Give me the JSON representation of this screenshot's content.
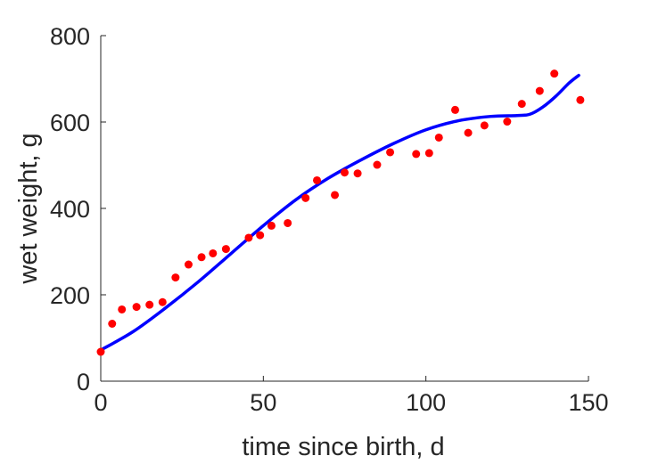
{
  "chart_data": {
    "type": "scatter",
    "title": "",
    "xlabel": "time since birth, d",
    "ylabel": "wet weight, g",
    "xlim": [
      0,
      150
    ],
    "ylim": [
      0,
      800
    ],
    "xticks": [
      0,
      50,
      100,
      150
    ],
    "yticks": [
      0,
      200,
      400,
      600,
      800
    ],
    "grid": false,
    "series": [
      {
        "kind": "points",
        "color": "#ff0000",
        "x": [
          0,
          3.5,
          6.5,
          11,
          15,
          19,
          23,
          27,
          31,
          34.5,
          38.5,
          45.5,
          49,
          52.5,
          57.5,
          63,
          66.5,
          72,
          75,
          79,
          85,
          89,
          97,
          101,
          104,
          109,
          113,
          118,
          125,
          129.5,
          135,
          139.5,
          147.5
        ],
        "y": [
          68,
          133,
          166,
          172,
          177,
          183,
          240,
          270,
          287,
          296,
          306,
          332,
          338,
          360,
          366,
          424,
          465,
          431,
          483,
          481,
          501,
          530,
          526,
          528,
          564,
          628,
          575,
          592,
          601,
          642,
          672,
          712,
          651
        ]
      },
      {
        "kind": "line",
        "color": "#0000ff",
        "x": [
          0,
          10,
          20,
          30,
          40,
          50,
          60,
          70,
          80,
          90,
          100,
          110,
          120,
          128,
          132,
          136,
          140,
          144,
          147
        ],
        "y": [
          72,
          115,
          170,
          230,
          295,
          360,
          420,
          470,
          512,
          550,
          582,
          603,
          613,
          615,
          618,
          635,
          660,
          690,
          708
        ]
      }
    ]
  }
}
